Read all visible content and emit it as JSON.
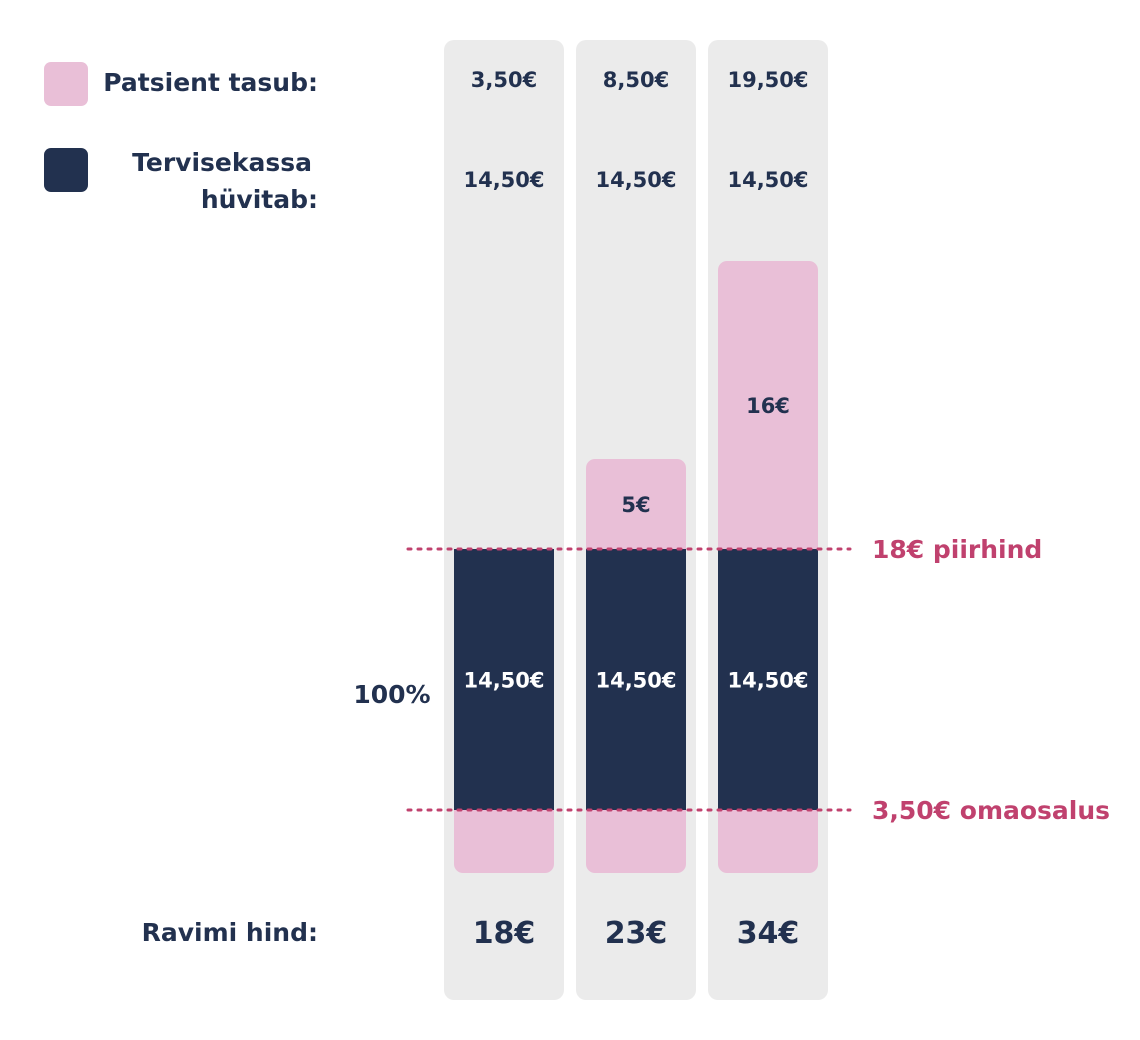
{
  "legend": {
    "patient_label": "Patsient tasub:",
    "fund_label_line1": "Tervisekassa",
    "fund_label_line2": "hüvitab:"
  },
  "price_row_label": "Ravimi hind:",
  "percent_label": "100%",
  "colors": {
    "patient": "#e9bfd7",
    "fund": "#22314f",
    "column_bg": "#ebebeb",
    "reference_line": "#c0416e",
    "text_dark": "#22314f",
    "text_light": "#ffffff"
  },
  "chart_data": {
    "type": "bar",
    "stacked": true,
    "categories": [
      "18€",
      "23€",
      "34€"
    ],
    "series": [
      {
        "name": "Patsient tasub",
        "role": "copayment",
        "values": [
          3.5,
          3.5,
          3.5
        ],
        "labels": [
          "",
          "",
          ""
        ]
      },
      {
        "name": "Tervisekassa hüvitab",
        "role": "fund",
        "values": [
          14.5,
          14.5,
          14.5
        ],
        "labels": [
          "14,50€",
          "14,50€",
          "14,50€"
        ]
      },
      {
        "name": "Patsient tasub",
        "role": "excess",
        "values": [
          0,
          5,
          16
        ],
        "labels": [
          "",
          "5€",
          "16€"
        ]
      }
    ],
    "patient_totals": [
      "3,50€",
      "8,50€",
      "19,50€"
    ],
    "fund_totals": [
      "14,50€",
      "14,50€",
      "14,50€"
    ],
    "price_labels": [
      "18€",
      "23€",
      "34€"
    ],
    "reference_lines": [
      {
        "value": 18,
        "label": "18€ piirhind"
      },
      {
        "value": 3.5,
        "label": "3,50€ omaosalus"
      }
    ],
    "ylim": [
      0,
      34
    ]
  }
}
